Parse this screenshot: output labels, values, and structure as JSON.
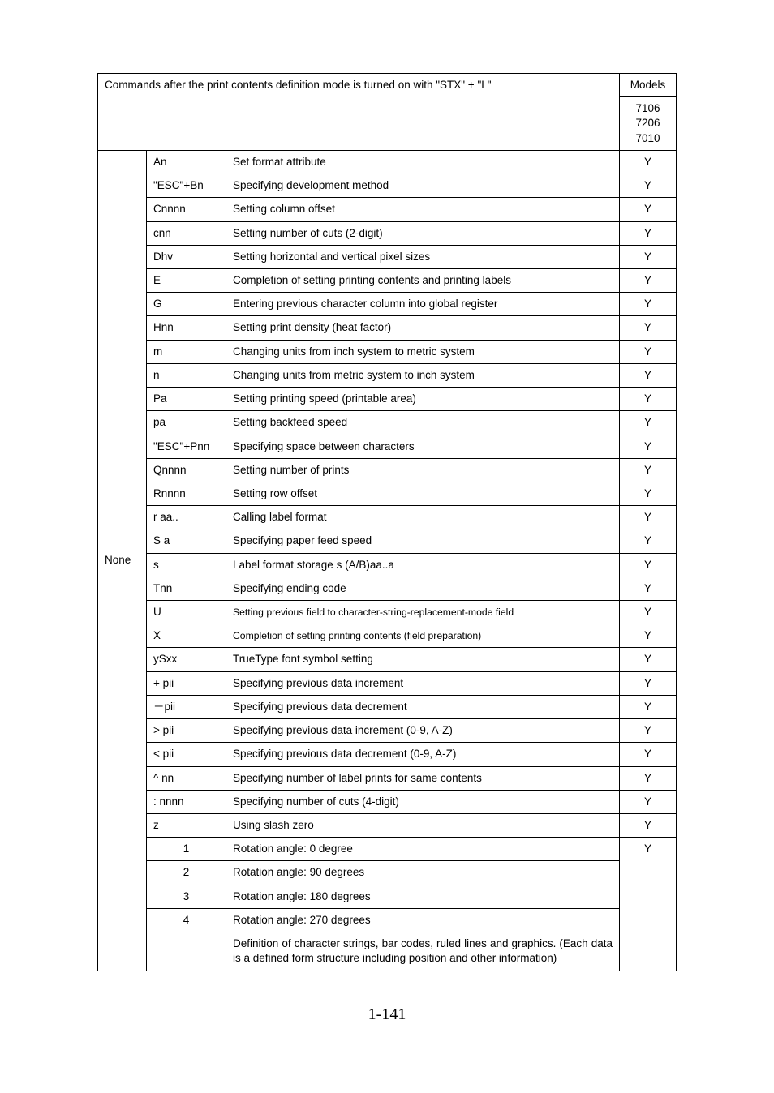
{
  "header": {
    "title": "Commands after the print contents definition mode is turned on with \"STX\" + \"L\"",
    "models_label": "Models",
    "models_nums": "7106\n7206\n7010"
  },
  "level": "None",
  "rows": [
    {
      "cmd": "An",
      "desc": "Set format attribute",
      "model": "Y"
    },
    {
      "cmd": "\"ESC\"+Bn",
      "desc": "Specifying development method",
      "model": "Y"
    },
    {
      "cmd": "Cnnnn",
      "desc": "Setting column offset",
      "model": "Y"
    },
    {
      "cmd": "cnn",
      "desc": "Setting number of cuts (2-digit)",
      "model": "Y"
    },
    {
      "cmd": "Dhv",
      "desc": "Setting horizontal and vertical pixel sizes",
      "model": "Y"
    },
    {
      "cmd": "E",
      "desc": "Completion of setting printing contents and printing labels",
      "model": "Y"
    },
    {
      "cmd": "G",
      "desc": "Entering previous character column into global register",
      "model": "Y"
    },
    {
      "cmd": "Hnn",
      "desc": "Setting print density (heat factor)",
      "model": "Y"
    },
    {
      "cmd": "m",
      "desc": "Changing units from inch system to metric system",
      "model": "Y"
    },
    {
      "cmd": "n",
      "desc": "Changing units from metric system to inch system",
      "model": "Y"
    },
    {
      "cmd": "Pa",
      "desc": "Setting printing speed (printable area)",
      "model": "Y"
    },
    {
      "cmd": "pa",
      "desc": "Setting backfeed speed",
      "model": "Y"
    },
    {
      "cmd": "\"ESC\"+Pnn",
      "desc": "Specifying space between characters",
      "model": "Y"
    },
    {
      "cmd": "Qnnnn",
      "desc": "Setting number of prints",
      "model": "Y"
    },
    {
      "cmd": "Rnnnn",
      "desc": "Setting row offset",
      "model": "Y"
    },
    {
      "cmd": "r aa..",
      "desc": "Calling label format",
      "model": "Y"
    },
    {
      "cmd": "S a",
      "desc": "Specifying paper feed speed",
      "model": "Y"
    },
    {
      "cmd": "s",
      "desc": "Label format storage s (A/B)aa..a",
      "model": "Y"
    },
    {
      "cmd": "Tnn",
      "desc": "Specifying ending code",
      "model": "Y"
    },
    {
      "cmd": "U",
      "desc": "Setting previous field to character-string-replacement-mode field",
      "model": "Y",
      "small": true
    },
    {
      "cmd": "X",
      "desc": "Completion of setting printing contents (field preparation)",
      "model": "Y",
      "small": true
    },
    {
      "cmd": "ySxx",
      "desc": "TrueType font symbol setting",
      "model": "Y"
    },
    {
      "cmd": "+ pii",
      "desc": "Specifying previous data increment",
      "model": "Y"
    },
    {
      "cmd": "－pii",
      "desc": "Specifying previous data decrement",
      "model": "Y"
    },
    {
      "cmd": "> pii",
      "desc": "Specifying previous data increment (0-9, A-Z)",
      "model": "Y"
    },
    {
      "cmd": "< pii",
      "desc": "Specifying previous data decrement (0-9, A-Z)",
      "model": "Y"
    },
    {
      "cmd": "^ nn",
      "desc": "Specifying number of label prints for same contents",
      "model": "Y"
    },
    {
      "cmd": ": nnnn",
      "desc": "Specifying number of cuts (4-digit)",
      "model": "Y"
    },
    {
      "cmd": "z",
      "desc": "Using slash zero",
      "model": "Y"
    }
  ],
  "rotation_block": {
    "model": "Y",
    "rows": [
      {
        "cmd": "1",
        "desc": "Rotation angle:   0  degree"
      },
      {
        "cmd": "2",
        "desc": "Rotation angle:   90  degrees"
      },
      {
        "cmd": "3",
        "desc": "Rotation angle:   180  degrees"
      },
      {
        "cmd": "4",
        "desc": "Rotation angle:   270  degrees"
      }
    ],
    "footer": "Definition of character strings, bar codes, ruled lines and graphics. (Each data is a defined form structure including position and other information)"
  },
  "page_number": "1-141"
}
